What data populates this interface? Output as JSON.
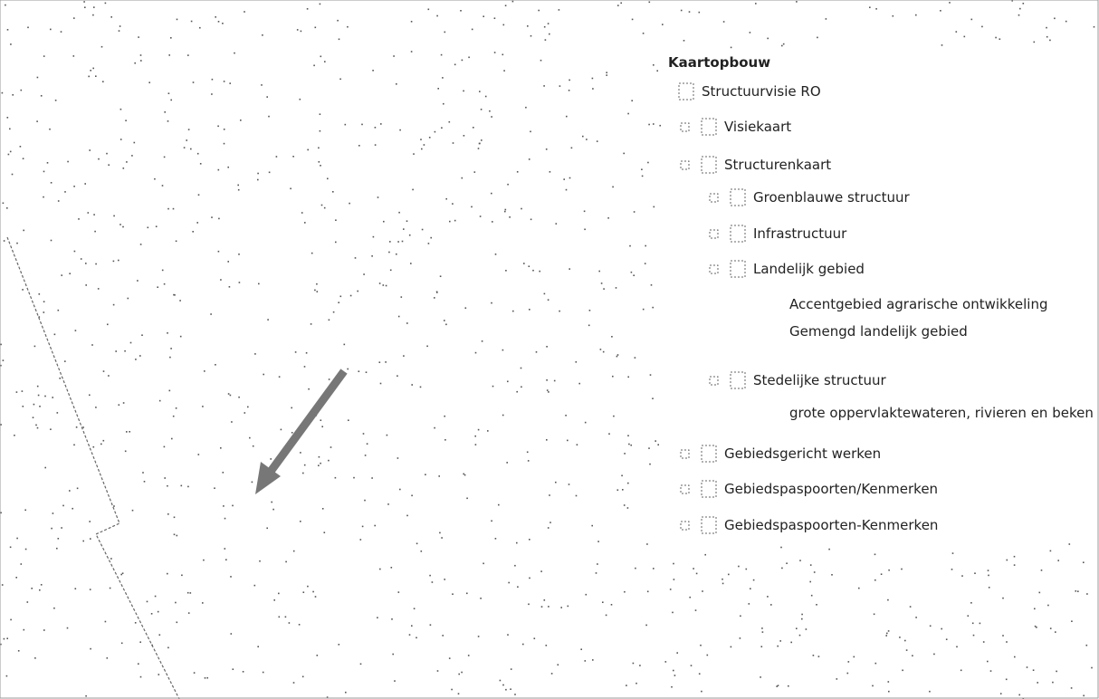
{
  "panel": {
    "title": "Kaartopbouw",
    "tree": {
      "label": "Structuurvisie RO",
      "children": [
        {
          "label": "Visiekaart"
        },
        {
          "label": "Structurenkaart",
          "children": [
            {
              "label": "Groenblauwe structuur"
            },
            {
              "label": "Infrastructuur"
            },
            {
              "label": "Landelijk gebied",
              "children": [
                {
                  "label": "Accentgebied agrarische ontwikkeling"
                },
                {
                  "label": "Gemengd landelijk gebied"
                }
              ]
            },
            {
              "label": "Stedelijke structuur",
              "children": [
                {
                  "label": "grote oppervlaktewateren, rivieren en beken"
                }
              ]
            }
          ]
        },
        {
          "label": "Gebiedsgericht werken"
        },
        {
          "label": "Gebiedspaspoorten/Kenmerken"
        },
        {
          "label": "Gebiedspaspoorten-Kenmerken"
        }
      ]
    }
  }
}
